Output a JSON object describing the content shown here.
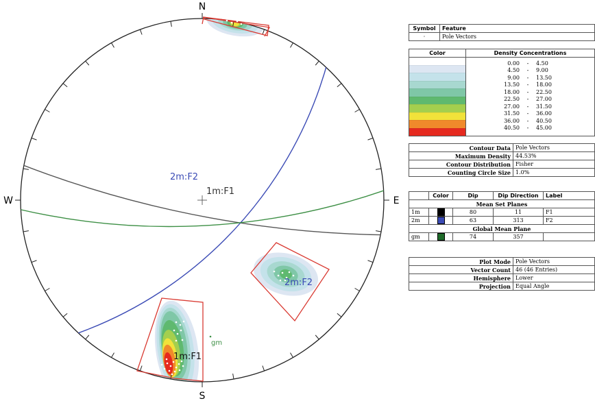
{
  "chart_data": {
    "type": "stereonet",
    "compass": {
      "north": "N",
      "south": "S",
      "east": "E",
      "west": "W"
    },
    "great_circles": [
      {
        "name": "1m:F1",
        "label": "1m:F1",
        "dip": 80,
        "dip_direction": 11,
        "color": "#555555"
      },
      {
        "name": "2m:F2",
        "label": "2m:F2",
        "dip": 63,
        "dip_direction": 313,
        "color": "#3b4bb5"
      },
      {
        "name": "gm",
        "label": "gm",
        "dip": 74,
        "dip_direction": 357,
        "color": "#3d8f45"
      }
    ],
    "pole_labels": [
      {
        "text": "1m:F1"
      },
      {
        "text": "2m:F2"
      },
      {
        "text": "gm"
      }
    ],
    "pole_vectors_count": 46
  },
  "legend": {
    "symbol_header": "Symbol",
    "feature_header": "Feature",
    "feature_value": "Pole Vectors",
    "color_header": "Color",
    "density_header": "Density Concentrations",
    "density_bins": [
      {
        "from": "0.00",
        "to": "4.50",
        "color": "#ffffff"
      },
      {
        "from": "4.50",
        "to": "9.00",
        "color": "#dde6f2"
      },
      {
        "from": "9.00",
        "to": "13.50",
        "color": "#c4e2ea"
      },
      {
        "from": "13.50",
        "to": "18.00",
        "color": "#a8d8d0"
      },
      {
        "from": "18.00",
        "to": "22.50",
        "color": "#7fc7a7"
      },
      {
        "from": "22.50",
        "to": "27.00",
        "color": "#5fb96f"
      },
      {
        "from": "27.00",
        "to": "31.50",
        "color": "#a4cf4e"
      },
      {
        "from": "31.50",
        "to": "36.00",
        "color": "#f1e23a"
      },
      {
        "from": "36.00",
        "to": "40.50",
        "color": "#f08a2b"
      },
      {
        "from": "40.50",
        "to": "45.00",
        "color": "#e52a1f"
      }
    ],
    "sep": "-",
    "contour_data_label": "Contour Data",
    "contour_data_value": "Pole Vectors",
    "max_density_label": "Maximum Density",
    "max_density_value": "44.53%",
    "contour_dist_label": "Contour Distribution",
    "contour_dist_value": "Fisher",
    "counting_label": "Counting Circle Size",
    "counting_value": "1.0%",
    "sets_headers": {
      "color": "Color",
      "dip": "Dip",
      "dipdir": "Dip Direction",
      "label": "Label"
    },
    "mean_set_planes_title": "Mean Set Planes",
    "sets": [
      {
        "id": "1m",
        "color": "#000000",
        "dip": "80",
        "dipdir": "11",
        "label": "F1"
      },
      {
        "id": "2m",
        "color": "#3b4bb5",
        "dip": "63",
        "dipdir": "313",
        "label": "F2"
      }
    ],
    "global_mean_title": "Global Mean Plane",
    "global": {
      "id": "gm",
      "color": "#1f6b2a",
      "dip": "74",
      "dipdir": "357",
      "label": ""
    },
    "plot_mode_label": "Plot Mode",
    "plot_mode_value": "Pole Vectors",
    "vector_count_label": "Vector Count",
    "vector_count_value": "46 (46 Entries)",
    "hemisphere_label": "Hemisphere",
    "hemisphere_value": "Lower",
    "projection_label": "Projection",
    "projection_value": "Equal Angle"
  }
}
